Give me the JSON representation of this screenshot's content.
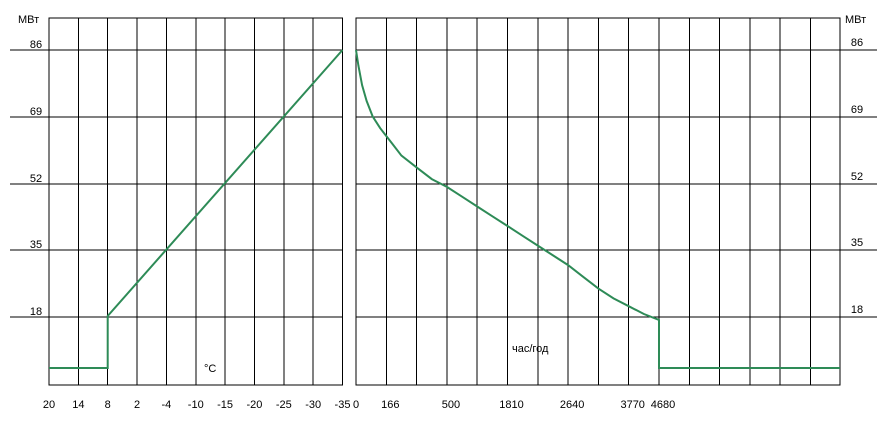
{
  "chart_data": [
    {
      "type": "line",
      "title": "",
      "xlabel": "°C",
      "ylabel": "МВт",
      "y_ticks": [
        "86",
        "69",
        "52",
        "35",
        "18"
      ],
      "x_ticks": [
        "20",
        "14",
        "8",
        "2",
        "-4",
        "-10",
        "-15",
        "-20",
        "-25",
        "-30",
        "-35"
      ],
      "ylim": [
        0,
        86
      ],
      "grid": true,
      "series": [
        {
          "color": "#2e8b57",
          "x": [
            20,
            8,
            8,
            -35
          ],
          "y": [
            0,
            0,
            18,
            86
          ]
        }
      ]
    },
    {
      "type": "line",
      "title": "",
      "xlabel": "час/год",
      "ylabel": "МВт",
      "y_ticks": [
        "86",
        "69",
        "52",
        "35",
        "18"
      ],
      "x_ticks": [
        "0",
        "166",
        "500",
        "1810",
        "2640",
        "3770",
        "4680"
      ],
      "ylim": [
        0,
        86
      ],
      "grid": true,
      "series": [
        {
          "color": "#2e8b57",
          "x_pos": [
            0.0,
            0.08,
            0.2,
            0.35,
            0.55,
            0.8,
            1.2,
            1.5,
            2.0,
            2.5,
            3.0,
            3.5,
            4.0,
            4.5,
            5.0,
            5.5,
            6.0,
            6.5,
            7.0,
            7.5,
            8.0,
            8.5,
            9.0,
            9.5,
            10.0,
            10.0,
            16.5
          ],
          "y": [
            86,
            82,
            77,
            73,
            69,
            66,
            62,
            59,
            56,
            53,
            51,
            48.5,
            46,
            43.5,
            41,
            38.5,
            36,
            33.5,
            31,
            28,
            25,
            22.5,
            20.5,
            18.5,
            17,
            0,
            0
          ]
        }
      ]
    }
  ]
}
